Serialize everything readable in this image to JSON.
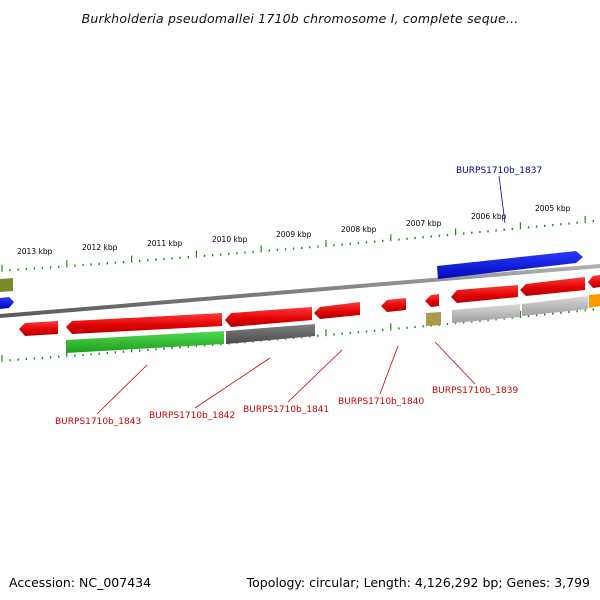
{
  "title": "Burkholderia pseudomallei 1710b chromosome I, complete seque...",
  "footer": {
    "accession": "Accession: NC_007434",
    "summary": "Topology: circular; Length: 4,126,292 bp; Genes: 3,799"
  },
  "scale_ticks": [
    "2013 kbp",
    "2012 kbp",
    "2011 kbp",
    "2010 kbp",
    "2009 kbp",
    "2008 kbp",
    "2007 kbp",
    "2006 kbp",
    "2005 kbp"
  ],
  "gene_labels": {
    "top": "BURPS1710b_1837",
    "bottom": [
      "BURPS1710b_1843",
      "BURPS1710b_1842",
      "BURPS1710b_1841",
      "BURPS1710b_1840",
      "BURPS1710b_1839"
    ]
  },
  "colors": {
    "forward_gene": "#e60000",
    "reverse_blue": "#0010e0",
    "green_feature": "#22b322",
    "gray_feature": "#666666",
    "light_gray_feature": "#bbbbbb",
    "olive_feature": "#7a8a2a",
    "tan_feature": "#a89a4a",
    "orange_feature": "#ff9900",
    "backbone": "#8a8a8a",
    "tick_green": "#1a8a1a",
    "label_red": "#cc0000",
    "label_blue": "#000099"
  }
}
